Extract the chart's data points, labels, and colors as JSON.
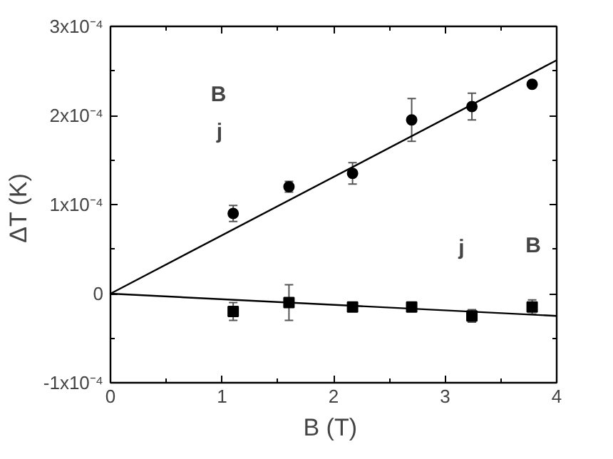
{
  "chart_data": {
    "type": "scatter",
    "xlabel": "B  (T)",
    "ylabel": "ΔT  (K)",
    "xlim": [
      0,
      4
    ],
    "xticks": [
      0,
      1,
      2,
      3,
      4
    ],
    "ylim": [
      -0.0001,
      0.0003
    ],
    "yticks": [
      {
        "value": -0.0001,
        "label": "-1x10⁻⁴"
      },
      {
        "value": 0,
        "label": "0"
      },
      {
        "value": 0.0001,
        "label": "1x10⁻⁴"
      },
      {
        "value": 0.0002,
        "label": "2x10⁻⁴"
      },
      {
        "value": 0.0003,
        "label": "3x10⁻⁴"
      }
    ],
    "grid": false,
    "annotations": [
      "B",
      "j",
      "j",
      "B"
    ],
    "series": [
      {
        "type": "scatter",
        "marker": "circle",
        "color": "#000000",
        "x": [
          1.1,
          1.6,
          2.17,
          2.7,
          3.24,
          3.78
        ],
        "values": [
          9e-05,
          0.00012,
          0.000135,
          0.000195,
          0.00021,
          0.000235
        ],
        "errors": [
          9e-06,
          6e-06,
          1.2e-05,
          2.4e-05,
          1.5e-05,
          null
        ]
      },
      {
        "type": "line",
        "marker": "none",
        "line_style": "solid",
        "color": "#000000",
        "x": [
          0,
          4
        ],
        "values": [
          0,
          0.000262
        ]
      },
      {
        "type": "scatter",
        "marker": "square",
        "color": "#000000",
        "x": [
          1.1,
          1.6,
          2.17,
          2.7,
          3.24,
          3.78
        ],
        "values": [
          -2e-05,
          -1e-05,
          -1.5e-05,
          -1.5e-05,
          -2.5e-05,
          -1.5e-05
        ],
        "errors": [
          1e-05,
          2e-05,
          null,
          null,
          7e-06,
          8e-06
        ]
      },
      {
        "type": "line",
        "marker": "none",
        "line_style": "solid",
        "color": "#000000",
        "x": [
          0,
          4
        ],
        "values": [
          0,
          -2.5e-05
        ]
      }
    ]
  }
}
